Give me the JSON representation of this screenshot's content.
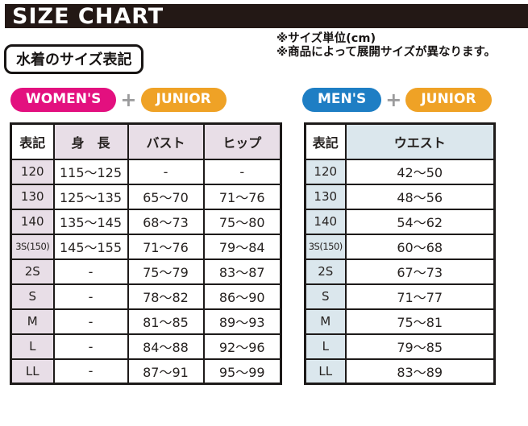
{
  "banner": {
    "title": "SIZE CHART"
  },
  "notes": {
    "line1": "※サイズ単位(cm)",
    "line2": "※商品によって展開サイズが異なります。"
  },
  "section_label": "水着のサイズ表記",
  "groups": {
    "left": {
      "tag1": "WOMEN'S",
      "plus": "+",
      "tag2": "JUNIOR"
    },
    "right": {
      "tag1": "MEN'S",
      "plus": "+",
      "tag2": "JUNIOR"
    }
  },
  "colors": {
    "banner": "#231815",
    "womens": "#e3107f",
    "mens": "#1e7ec4",
    "junior": "#efa226",
    "plus": "#9b9b9c",
    "left_cell": "#e8dee7",
    "right_cell": "#dbe7ed"
  },
  "tables": {
    "womens_junior": {
      "headers": [
        "表記",
        "身　長",
        "バスト",
        "ヒップ"
      ],
      "rows": [
        [
          "120",
          "115～125",
          "-",
          "-"
        ],
        [
          "130",
          "125～135",
          "65～70",
          "71～76"
        ],
        [
          "140",
          "135～145",
          "68～73",
          "75～80"
        ],
        [
          "3S(150)",
          "145～155",
          "71～76",
          "79～84"
        ],
        [
          "2S",
          "-",
          "75～79",
          "83～87"
        ],
        [
          "S",
          "-",
          "78～82",
          "86～90"
        ],
        [
          "M",
          "-",
          "81～85",
          "89～93"
        ],
        [
          "L",
          "-",
          "84～88",
          "92～96"
        ],
        [
          "LL",
          "-",
          "87～91",
          "95～99"
        ]
      ]
    },
    "mens_junior": {
      "headers": [
        "表記",
        "ウエスト"
      ],
      "rows": [
        [
          "120",
          "42～50"
        ],
        [
          "130",
          "48～56"
        ],
        [
          "140",
          "54～62"
        ],
        [
          "3S(150)",
          "60～68"
        ],
        [
          "2S",
          "67～73"
        ],
        [
          "S",
          "71～77"
        ],
        [
          "M",
          "75～81"
        ],
        [
          "L",
          "79～85"
        ],
        [
          "LL",
          "83～89"
        ]
      ]
    }
  }
}
